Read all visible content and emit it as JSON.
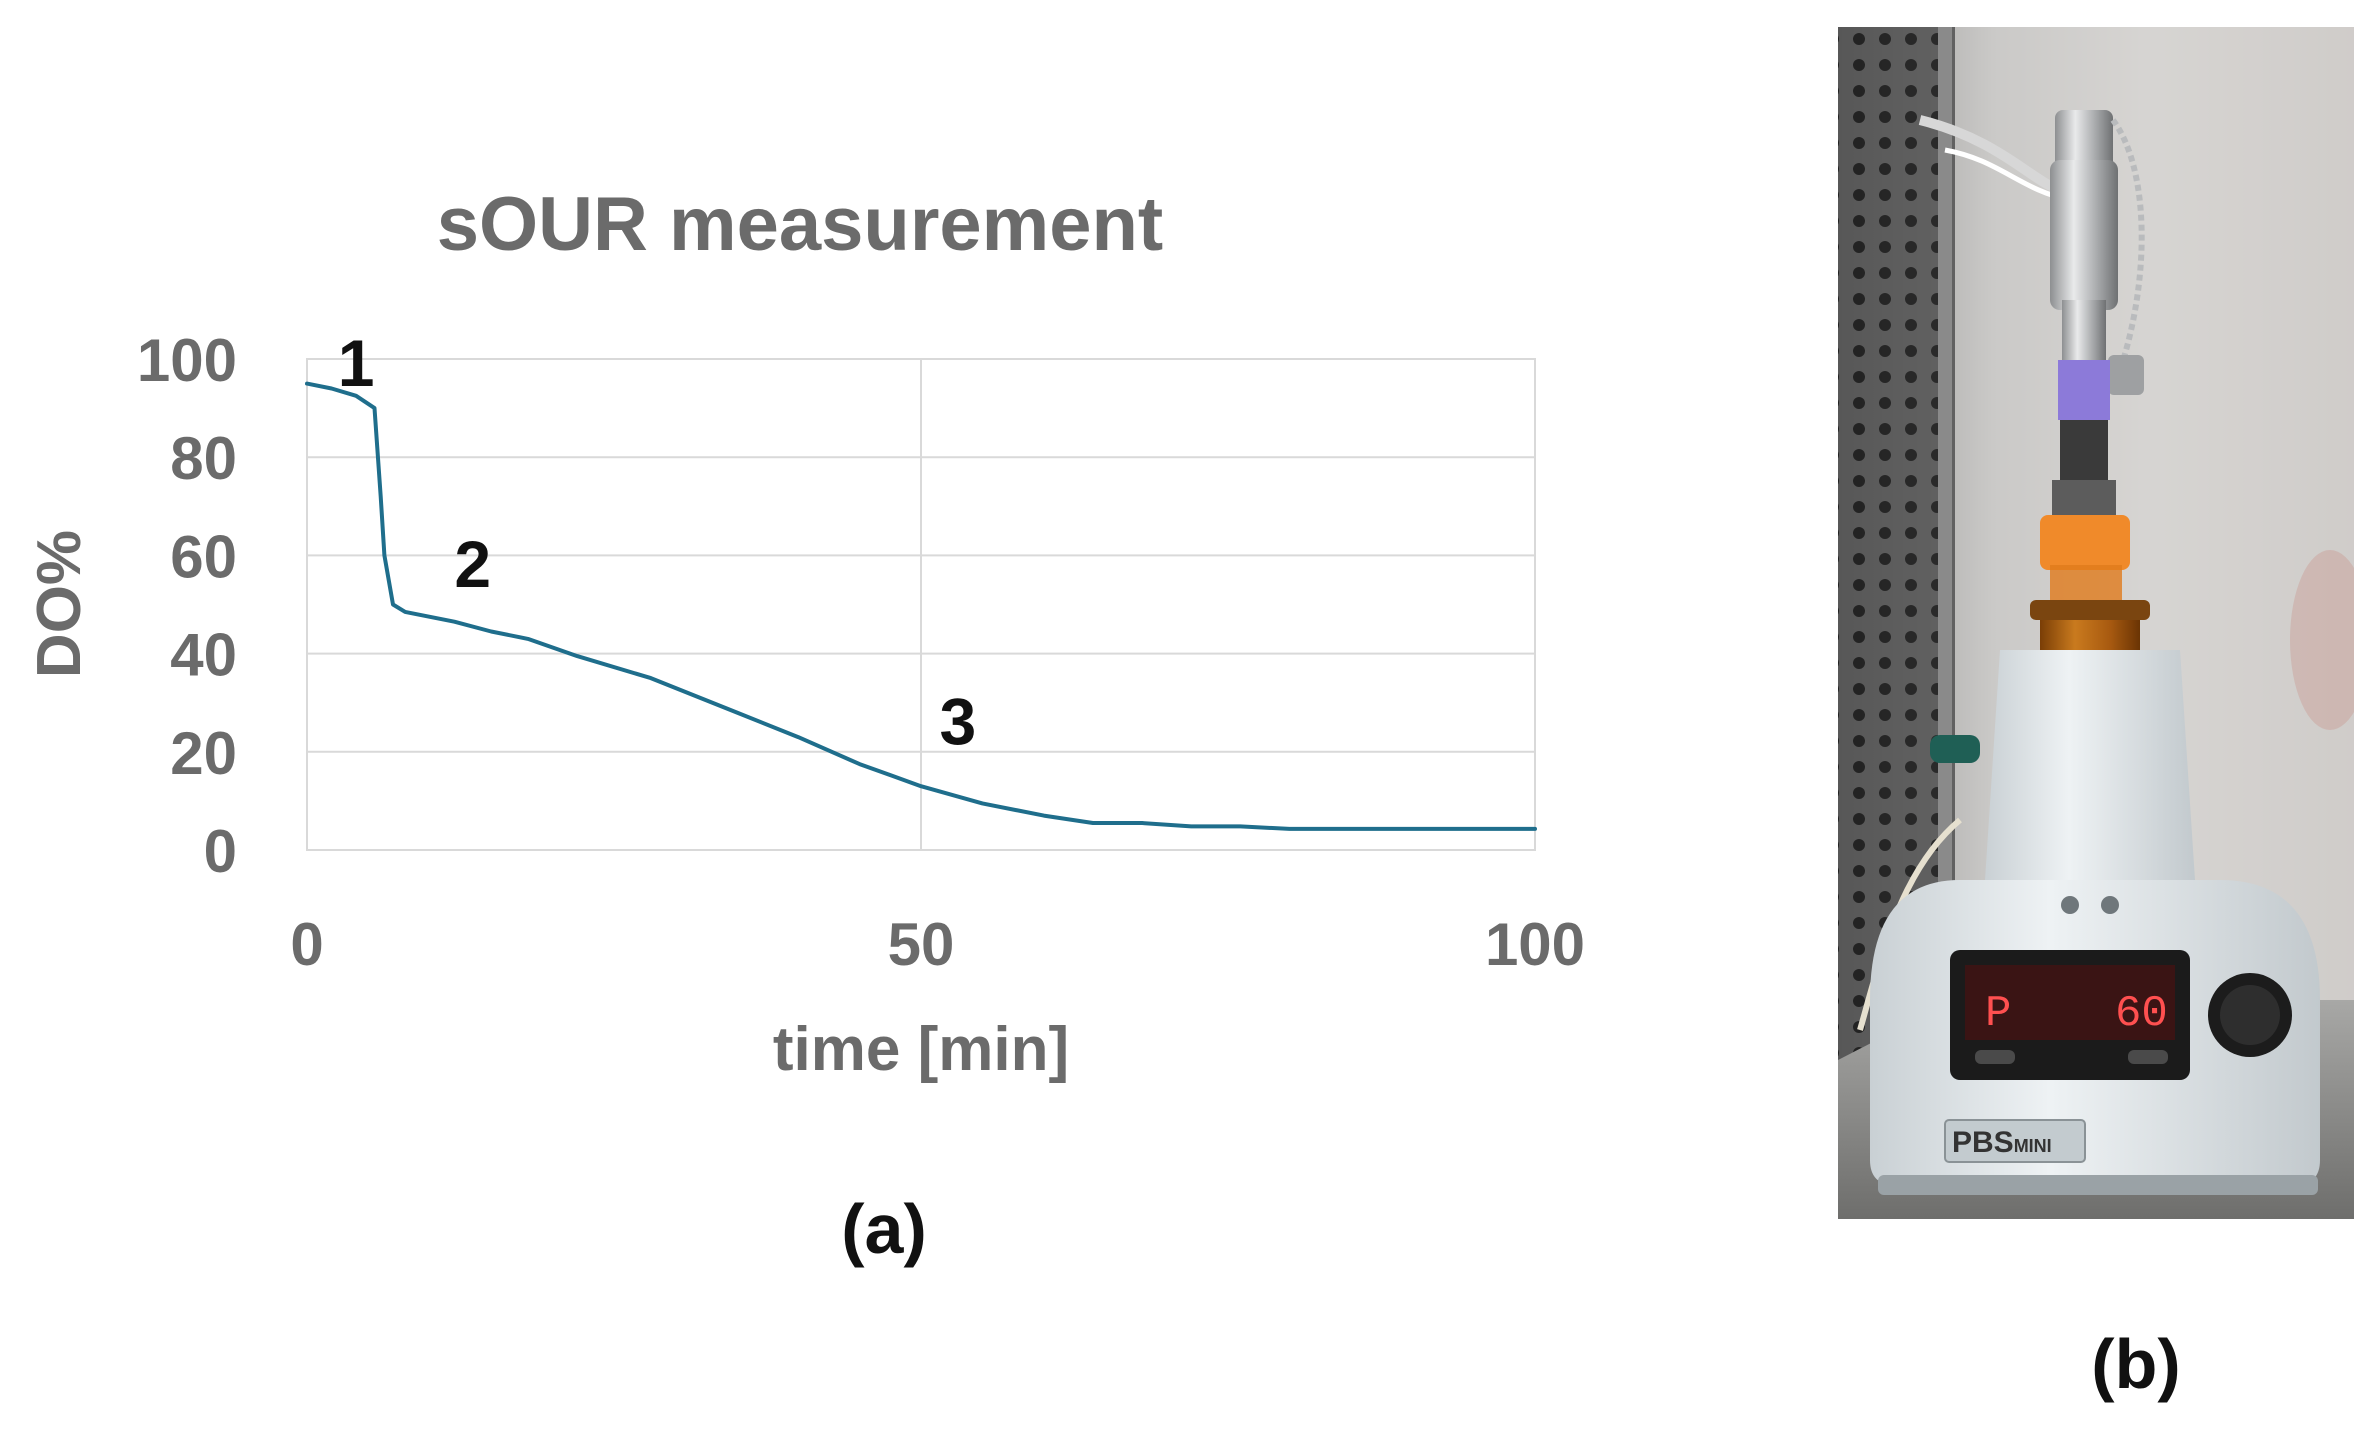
{
  "chart_data": {
    "type": "line",
    "title": "sOUR measurement",
    "xlabel": "time [min]",
    "ylabel": "DO%",
    "xlim": [
      0,
      100
    ],
    "ylim": [
      0,
      100
    ],
    "x_ticks": [
      0,
      50,
      100
    ],
    "y_ticks": [
      0,
      20,
      40,
      60,
      80,
      100
    ],
    "x_tick_labels": [
      "0",
      "50",
      "100"
    ],
    "y_tick_labels": [
      "0",
      "20",
      "40",
      "60",
      "80",
      "100"
    ],
    "grid": true,
    "legend": false,
    "line_color": "#1f6e8c",
    "series": [
      {
        "x": [
          0,
          2,
          4,
          5.5,
          6,
          6.3,
          7,
          8,
          10,
          12,
          15,
          18,
          22,
          28,
          35,
          40,
          45,
          50,
          55,
          60,
          64,
          68,
          72,
          76,
          80,
          84,
          90,
          100
        ],
        "values": [
          95,
          94,
          92.5,
          90,
          72,
          60,
          50,
          48.5,
          47.5,
          46.5,
          44.5,
          43,
          39.5,
          35,
          28,
          23,
          17.5,
          13,
          9.5,
          7,
          5.5,
          5.5,
          4.8,
          4.8,
          4.3,
          4.3,
          4.3,
          4.3
        ]
      }
    ],
    "annotations": [
      {
        "text": "1",
        "x": 4,
        "y": 99
      },
      {
        "text": "2",
        "x": 13.5,
        "y": 58
      },
      {
        "text": "3",
        "x": 53,
        "y": 26
      }
    ]
  },
  "panels": {
    "a_label": "(a)",
    "b_label": "(b)"
  },
  "photo": {
    "description_icon": "bioreactor-photo",
    "device_label": "PBS",
    "device_label_suffix": "MINI",
    "display_left": "P",
    "display_right": "60"
  }
}
